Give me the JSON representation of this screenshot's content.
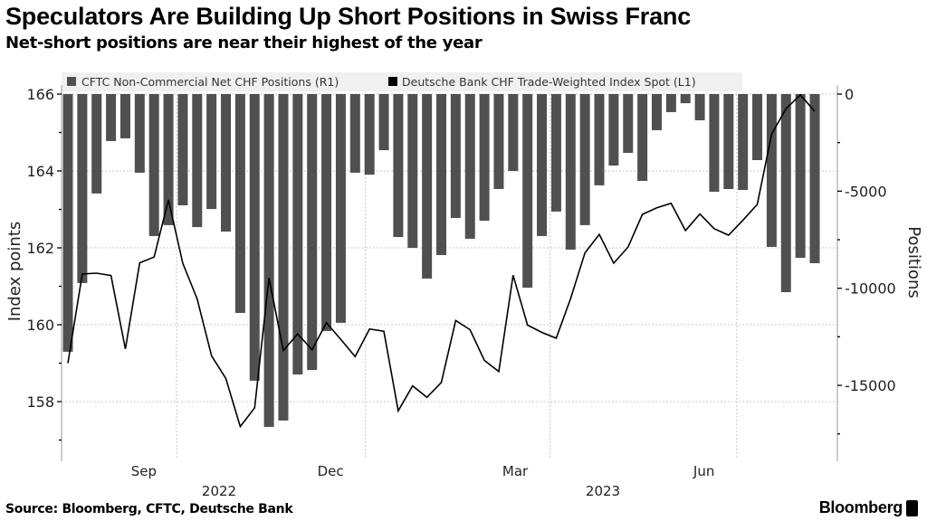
{
  "header": {
    "title": "Speculators Are Building Up Short Positions in Swiss Franc",
    "subtitle": "Net-short positions are near their highest of the year"
  },
  "footer": {
    "source": "Source: Bloomberg, CFTC, Deutsche Bank",
    "logo": "Bloomberg"
  },
  "colors": {
    "bars": "#505050",
    "line": "#000000",
    "legend_bg": "#f0f0f0",
    "grid": "#c8c8c8"
  },
  "chart_data": {
    "type": "bar+line",
    "title": "Speculators Are Building Up Short Positions in Swiss Franc",
    "subtitle": "Net-short positions are near their highest of the year",
    "ylabel_left": "Index points",
    "ylabel_right": "Positions",
    "ylim_left": [
      156.5,
      166.3
    ],
    "ylim_right": [
      -18900,
      1500
    ],
    "left_ticks": [
      "166",
      "164",
      "162",
      "160",
      "158"
    ],
    "left_tick_values": [
      166,
      164,
      162,
      160,
      158
    ],
    "right_ticks": [
      "0",
      "-5000",
      "-10000",
      "-15000"
    ],
    "right_tick_values": [
      0,
      -5000,
      -10000,
      -15000
    ],
    "x_month_labels": [
      {
        "label": "Sep",
        "date": "2022-09-15"
      },
      {
        "label": "Dec",
        "date": "2022-12-15"
      },
      {
        "label": "Mar",
        "date": "2023-03-15"
      },
      {
        "label": "Jun",
        "date": "2023-06-15"
      }
    ],
    "x_year_labels": [
      {
        "label": "2022",
        "date": "2022-10-15"
      },
      {
        "label": "2023",
        "date": "2023-04-15"
      }
    ],
    "grid": true,
    "legend_placement": "top",
    "x": [
      "2022-08-09",
      "2022-08-16",
      "2022-08-23",
      "2022-08-30",
      "2022-09-06",
      "2022-09-13",
      "2022-09-20",
      "2022-09-27",
      "2022-10-04",
      "2022-10-11",
      "2022-10-18",
      "2022-10-25",
      "2022-11-01",
      "2022-11-08",
      "2022-11-15",
      "2022-11-22",
      "2022-11-29",
      "2022-12-06",
      "2022-12-13",
      "2022-12-20",
      "2022-12-27",
      "2023-01-03",
      "2023-01-10",
      "2023-01-17",
      "2023-01-24",
      "2023-01-31",
      "2023-02-07",
      "2023-02-14",
      "2023-02-21",
      "2023-02-28",
      "2023-03-07",
      "2023-03-14",
      "2023-03-21",
      "2023-03-28",
      "2023-04-04",
      "2023-04-11",
      "2023-04-18",
      "2023-04-25",
      "2023-05-02",
      "2023-05-09",
      "2023-05-16",
      "2023-05-23",
      "2023-05-30",
      "2023-06-06",
      "2023-06-13",
      "2023-06-20",
      "2023-06-27",
      "2023-07-04",
      "2023-07-11",
      "2023-07-18",
      "2023-07-25",
      "2023-08-01",
      "2023-08-08"
    ],
    "series": [
      {
        "name": "CFTC Non-Commercial Net CHF Positions (R1)",
        "type": "bar",
        "axis": "right",
        "values": [
          -13270,
          -9730,
          -5120,
          -2420,
          -2280,
          -4050,
          -7310,
          -6750,
          -5730,
          -6850,
          -5920,
          -7080,
          -11270,
          -14760,
          -17140,
          -16810,
          -14440,
          -14210,
          -12200,
          -11780,
          -4050,
          -4150,
          -2890,
          -7360,
          -7920,
          -9500,
          -8290,
          -6380,
          -7450,
          -6520,
          -4890,
          -3960,
          -9970,
          -7310,
          -6050,
          -8010,
          -6750,
          -4700,
          -3680,
          -3030,
          -4470,
          -1860,
          -930,
          -470,
          -1350,
          -5030,
          -4890,
          -4940,
          -3400,
          -7870,
          -10200,
          -8430,
          -8710
        ]
      },
      {
        "name": "Deutsche Bank CHF Trade-Weighted Index Spot (L1)",
        "type": "line",
        "axis": "left",
        "values": [
          159.0,
          161.32,
          161.34,
          161.28,
          159.37,
          161.61,
          161.76,
          163.25,
          161.6,
          160.67,
          159.19,
          158.6,
          157.35,
          157.84,
          161.22,
          159.33,
          159.76,
          159.35,
          160.05,
          159.62,
          159.17,
          159.89,
          159.83,
          157.76,
          158.41,
          158.11,
          158.5,
          160.11,
          159.87,
          159.07,
          158.78,
          161.29,
          159.99,
          159.8,
          159.65,
          160.68,
          161.87,
          162.35,
          161.6,
          162.02,
          162.87,
          163.04,
          163.16,
          162.45,
          162.88,
          162.5,
          162.33,
          162.72,
          163.13,
          164.96,
          165.62,
          165.98,
          165.55
        ]
      }
    ]
  }
}
